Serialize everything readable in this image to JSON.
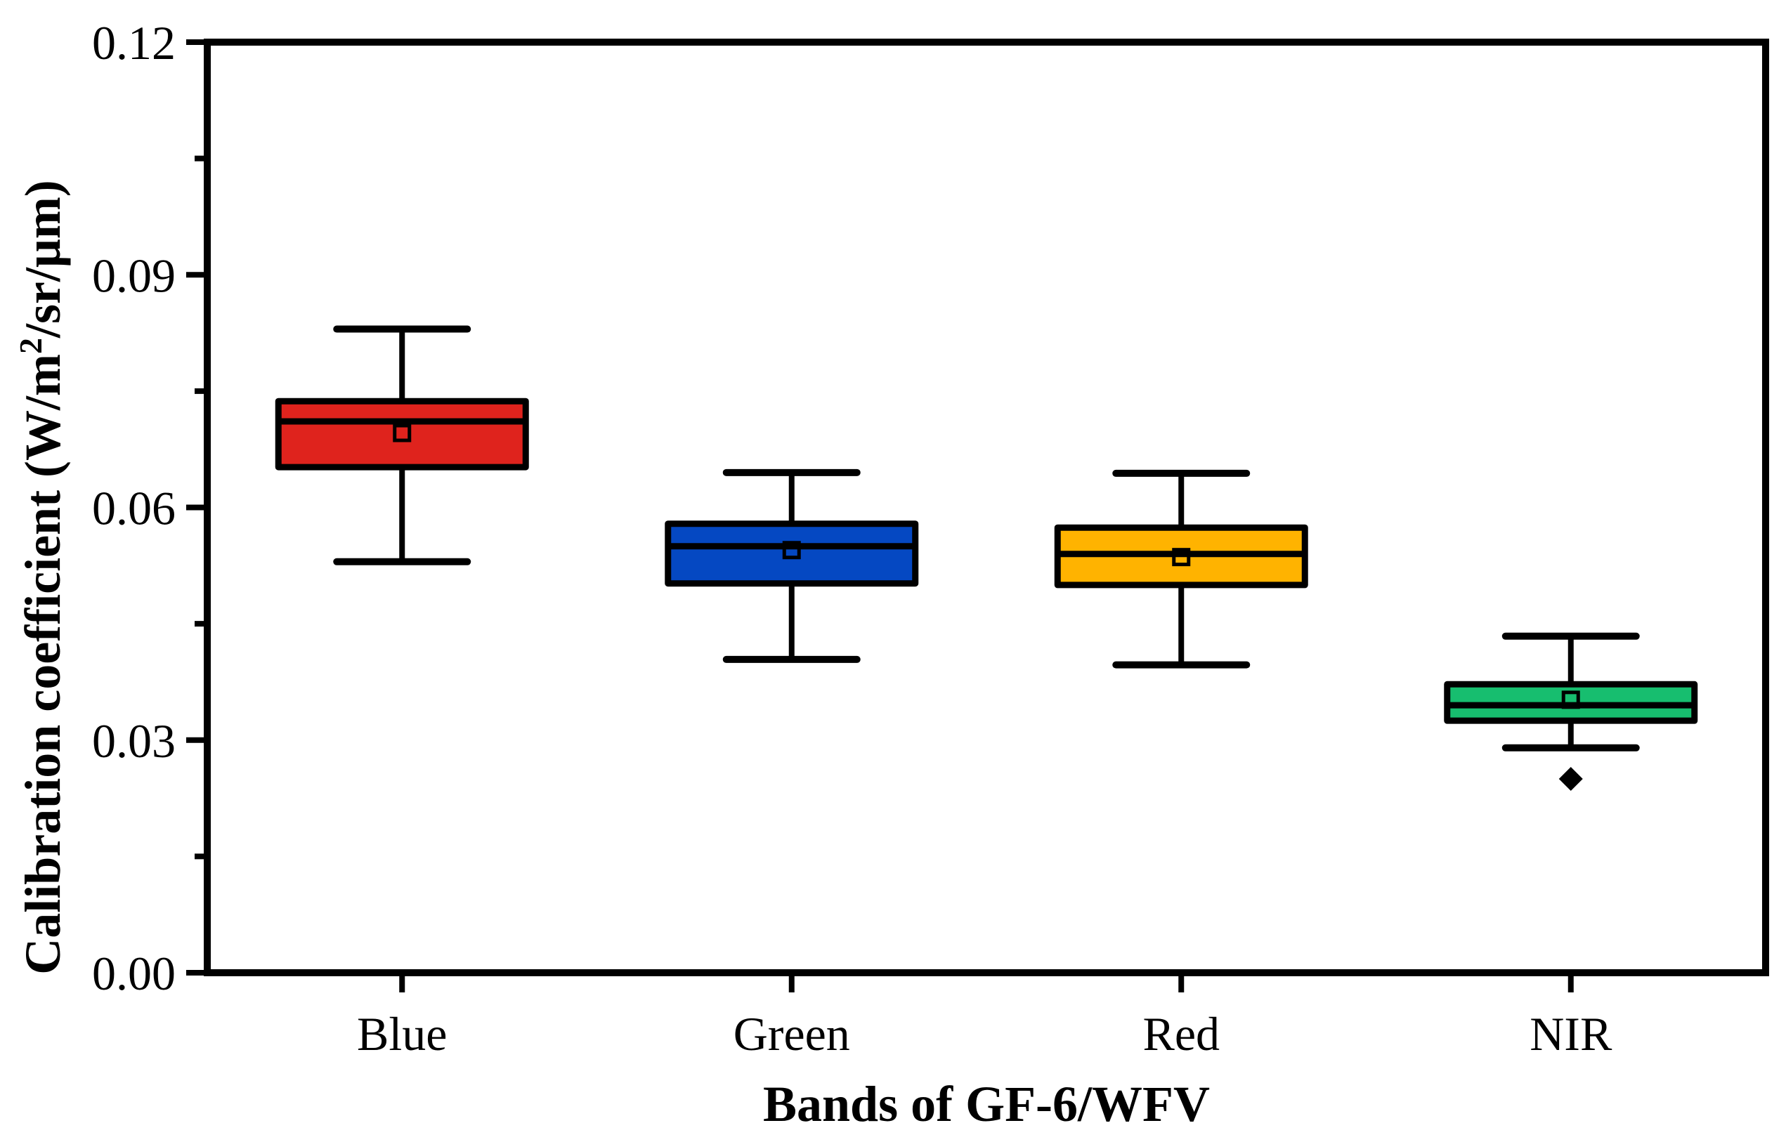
{
  "chart_data": {
    "type": "box",
    "title": "",
    "xlabel": "Bands of GF-6/WFV",
    "ylabel": {
      "prefix": "Calibration coefficient (W/m",
      "superscript": "2",
      "suffix": "/sr/μm)",
      "full_text": "Calibration coefficient (W/m2/sr/μm)"
    },
    "ylim": [
      0,
      0.12
    ],
    "y_major_ticks": [
      {
        "value": 0.0,
        "label": "0.00"
      },
      {
        "value": 0.03,
        "label": "0.03"
      },
      {
        "value": 0.06,
        "label": "0.06"
      },
      {
        "value": 0.09,
        "label": "0.09"
      },
      {
        "value": 0.12,
        "label": "0.12"
      }
    ],
    "y_minor_ticks": [
      0.015,
      0.045,
      0.075,
      0.105
    ],
    "categories": [
      "Blue",
      "Green",
      "Red",
      "NIR"
    ],
    "series": [
      {
        "category": "Blue",
        "fill_color": "#DF231D",
        "whisker_low": 0.053,
        "q1": 0.0652,
        "median": 0.0711,
        "mean": 0.0696,
        "q3": 0.0737,
        "whisker_high": 0.083,
        "outliers": []
      },
      {
        "category": "Green",
        "fill_color": "#0548C2",
        "whisker_low": 0.0404,
        "q1": 0.0502,
        "median": 0.055,
        "mean": 0.0545,
        "q3": 0.0579,
        "whisker_high": 0.0645,
        "outliers": []
      },
      {
        "category": "Red",
        "fill_color": "#FFB300",
        "whisker_low": 0.0397,
        "q1": 0.05,
        "median": 0.054,
        "mean": 0.0536,
        "q3": 0.0574,
        "whisker_high": 0.0644,
        "outliers": []
      },
      {
        "category": "NIR",
        "fill_color": "#17BE6F",
        "whisker_low": 0.029,
        "q1": 0.0325,
        "median": 0.0345,
        "mean": 0.0352,
        "q3": 0.0372,
        "whisker_high": 0.0434,
        "outliers": [
          0.025
        ]
      }
    ],
    "line_color": "#000000",
    "background_color": "#FFFFFF",
    "grid": false,
    "legend_position": "none",
    "mean_marker": "open-square",
    "outlier_marker": "filled-diamond"
  }
}
